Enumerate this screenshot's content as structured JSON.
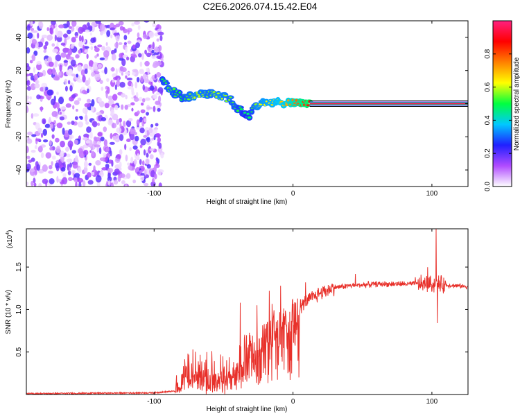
{
  "title": "C2E6.2026.074.15.42.E04",
  "chart_data": [
    {
      "type": "heatmap",
      "xlabel": "Height of straight line (km)",
      "ylabel": "Frequency (Hz)",
      "xlim": [
        -192,
        126
      ],
      "ylim": [
        -50,
        50
      ],
      "xticks": [
        {
          "v": -100,
          "label": "-100"
        },
        {
          "v": 0,
          "label": "0"
        },
        {
          "v": 100,
          "label": "100"
        }
      ],
      "yticks": [
        {
          "v": -40,
          "label": "-40"
        },
        {
          "v": -20,
          "label": "-20"
        },
        {
          "v": 0,
          "label": "0"
        },
        {
          "v": 20,
          "label": "20"
        },
        {
          "v": 40,
          "label": "40"
        }
      ],
      "colorbar": {
        "label": "Normalized spectral amplitude",
        "range": [
          0,
          1
        ],
        "ticks": [
          {
            "v": 0.0,
            "label": "0.0"
          },
          {
            "v": 0.2,
            "label": "0.2"
          },
          {
            "v": 0.4,
            "label": "0.4"
          },
          {
            "v": 0.6,
            "label": "0.6"
          },
          {
            "v": 0.8,
            "label": "0.8"
          }
        ],
        "colors": [
          "#ffffff",
          "#b04bff",
          "#2020ff",
          "#00c8ff",
          "#00ff40",
          "#ffff00",
          "#ff8000",
          "#ff0000",
          "#ff2080"
        ]
      },
      "noise_region": {
        "x_from": -192,
        "x_to": -94,
        "y_from": -50,
        "y_to": 50,
        "amplitude": [
          0.02,
          0.22
        ]
      },
      "signal_track": [
        {
          "x": -94,
          "y": 14,
          "a": 0.5
        },
        {
          "x": -88,
          "y": 8,
          "a": 0.55
        },
        {
          "x": -80,
          "y": 4,
          "a": 0.5
        },
        {
          "x": -70,
          "y": 5,
          "a": 0.6
        },
        {
          "x": -60,
          "y": 6,
          "a": 0.55
        },
        {
          "x": -52,
          "y": 4,
          "a": 0.6
        },
        {
          "x": -45,
          "y": 2,
          "a": 0.55
        },
        {
          "x": -38,
          "y": -4,
          "a": 0.5
        },
        {
          "x": -33,
          "y": -9,
          "a": 0.45
        },
        {
          "x": -25,
          "y": 0,
          "a": 0.6
        },
        {
          "x": -15,
          "y": 0,
          "a": 0.65
        },
        {
          "x": -5,
          "y": 1,
          "a": 0.7
        },
        {
          "x": 5,
          "y": 1,
          "a": 0.8
        },
        {
          "x": 15,
          "y": 0,
          "a": 0.9
        },
        {
          "x": 126,
          "y": 0,
          "a": 0.95
        }
      ],
      "line_marker": {
        "x_from": 12,
        "x_to": 126,
        "y": 0,
        "a": 0.95
      }
    },
    {
      "type": "line",
      "xlabel": "Height of straight line (km)",
      "ylabel": "SNR (10 * v/v)",
      "scale_label": "(x10",
      "scale_exponent": "4",
      "scale_suffix": ")",
      "xlim": [
        -192,
        126
      ],
      "ylim": [
        0,
        1.95
      ],
      "xticks": [
        {
          "v": -100,
          "label": "-100"
        },
        {
          "v": 0,
          "label": "0"
        },
        {
          "v": 100,
          "label": "100"
        }
      ],
      "yticks": [
        {
          "v": 0.5,
          "label": "0.5"
        },
        {
          "v": 1.0,
          "label": "1.0"
        },
        {
          "v": 1.5,
          "label": "1.5"
        }
      ],
      "color": "#e8302a",
      "series_envelope": [
        {
          "x": -192,
          "y": 0.01
        },
        {
          "x": -100,
          "y": 0.02
        },
        {
          "x": -85,
          "y": 0.04
        },
        {
          "x": -80,
          "y": 0.18
        },
        {
          "x": -70,
          "y": 0.28
        },
        {
          "x": -60,
          "y": 0.25
        },
        {
          "x": -50,
          "y": 0.22
        },
        {
          "x": -40,
          "y": 0.35
        },
        {
          "x": -30,
          "y": 0.55
        },
        {
          "x": -20,
          "y": 0.75
        },
        {
          "x": -10,
          "y": 0.88
        },
        {
          "x": 0,
          "y": 0.95
        },
        {
          "x": 10,
          "y": 1.1
        },
        {
          "x": 20,
          "y": 1.2
        },
        {
          "x": 30,
          "y": 1.26
        },
        {
          "x": 40,
          "y": 1.28
        },
        {
          "x": 60,
          "y": 1.3
        },
        {
          "x": 90,
          "y": 1.3
        },
        {
          "x": 100,
          "y": 1.3
        },
        {
          "x": 126,
          "y": 1.27
        }
      ],
      "spikes": [
        {
          "x": -72,
          "y": 0.53
        },
        {
          "x": -62,
          "y": 0.5
        },
        {
          "x": -52,
          "y": 0.47
        },
        {
          "x": -38,
          "y": 1.08
        },
        {
          "x": -31,
          "y": 0.7
        },
        {
          "x": -26,
          "y": 1.05
        },
        {
          "x": -17,
          "y": 1.22
        },
        {
          "x": -9,
          "y": 1.28
        },
        {
          "x": 9,
          "y": 1.32
        },
        {
          "x": 45,
          "y": 1.42
        },
        {
          "x": 88,
          "y": 1.38
        },
        {
          "x": 97,
          "y": 1.5
        },
        {
          "x": 103,
          "y": 1.95
        },
        {
          "x": 104,
          "y": 0.84
        }
      ]
    }
  ]
}
